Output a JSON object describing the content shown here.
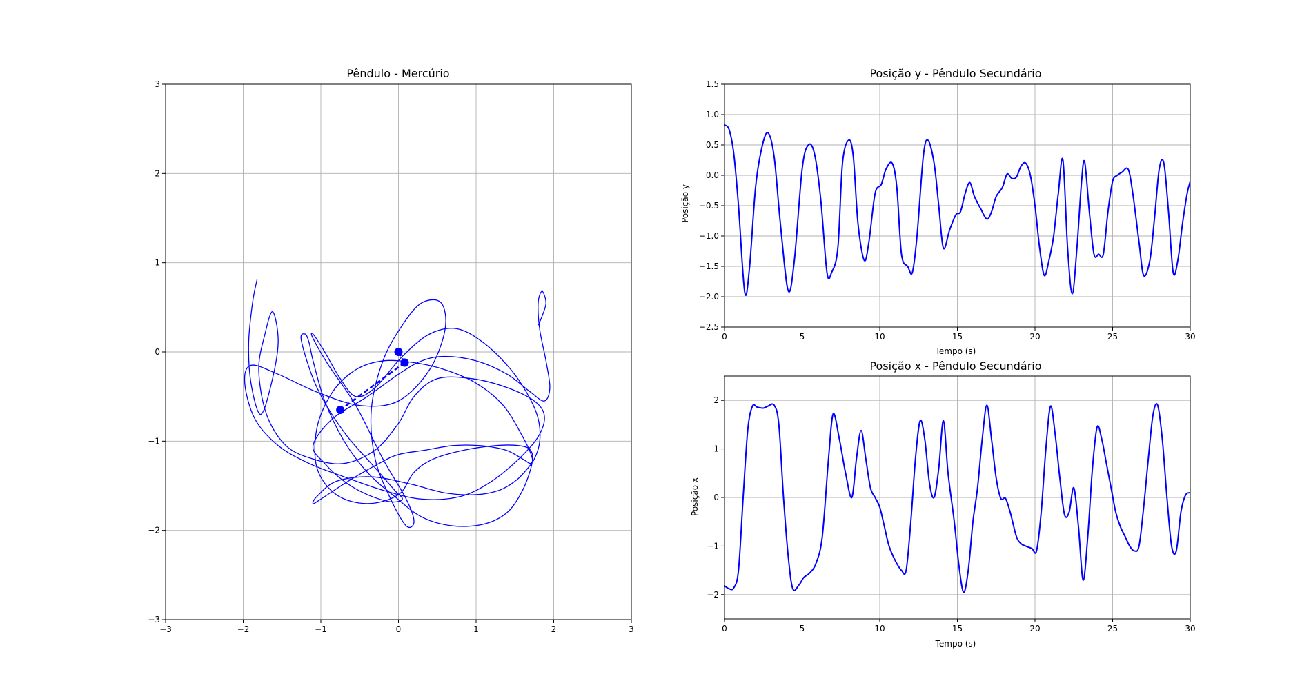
{
  "chart_data": [
    {
      "type": "line",
      "title": "Pêndulo - Mercúrio",
      "xlabel": "",
      "ylabel": "",
      "xlim": [
        -3,
        3
      ],
      "ylim": [
        -3,
        3
      ],
      "xticks": [
        -3,
        -2,
        -1,
        0,
        1,
        2,
        3
      ],
      "yticks": [
        -3,
        -2,
        -1,
        0,
        1,
        2,
        3
      ],
      "xtick_labels": [
        "−3",
        "−2",
        "−1",
        "0",
        "1",
        "2",
        "3"
      ],
      "ytick_labels": [
        "−3",
        "−2",
        "−1",
        "0",
        "1",
        "2",
        "3"
      ],
      "grid": true,
      "color": "#0000ff",
      "trajectory": {
        "x": [
          -1.82,
          -1.88,
          -1.93,
          -1.9,
          -1.78,
          -1.65,
          -1.55,
          -1.62,
          -1.72,
          -1.8,
          -1.7,
          -1.45,
          -1.1,
          -0.7,
          -0.3,
          0.0,
          0.2,
          0.5,
          0.95,
          1.4,
          1.75,
          1.88,
          1.8,
          1.55,
          1.2,
          0.8,
          0.3,
          -0.2,
          -0.7,
          -1.15,
          -1.55,
          -1.85,
          -1.98,
          -1.9,
          -1.55,
          -1.05,
          -0.5,
          0.0,
          0.4,
          0.6,
          0.55,
          0.3,
          0.05,
          -0.2,
          -0.35,
          -0.3,
          -0.1,
          0.1,
          0.2,
          0.1,
          -0.2,
          -0.55,
          -0.9,
          -1.1,
          -1.1,
          -0.95,
          -0.75,
          -0.55,
          -0.3,
          0.05,
          0.4,
          0.75,
          1.1,
          1.45,
          1.68,
          1.8,
          1.82,
          1.75,
          1.62,
          1.5,
          1.3,
          1.0,
          0.6,
          0.15,
          -0.35,
          -0.8,
          -1.05,
          -1.1,
          -1.0,
          -0.65,
          -0.25,
          0.0,
          0.35,
          0.7,
          1.05,
          1.38,
          1.6,
          1.7,
          1.72,
          1.6,
          1.35,
          1.0,
          0.6,
          0.2,
          -0.2,
          -0.55,
          -0.85,
          -1.05,
          -1.05,
          -0.8,
          -0.4,
          0.0,
          0.2,
          0.45,
          0.85,
          1.25,
          1.55,
          1.7,
          1.72,
          1.6,
          1.4,
          1.1,
          0.7,
          0.3,
          -0.05,
          -0.4,
          -0.7,
          -0.95,
          -1.1,
          -1.15,
          -1.2,
          -1.25,
          -1.05,
          -0.7,
          -0.3,
          -0.05,
          0.05,
          -0.1,
          -0.4,
          -0.7,
          -0.95,
          -1.1,
          -0.85,
          -0.4,
          0.0,
          0.3,
          0.6,
          1.0,
          1.4,
          1.7,
          1.88,
          1.95,
          1.9,
          1.82,
          1.8,
          1.85,
          1.9,
          1.85,
          1.8
        ],
        "y": [
          0.82,
          0.55,
          0.1,
          -0.35,
          -0.7,
          -0.4,
          0.1,
          0.45,
          0.2,
          -0.2,
          -0.7,
          -1.05,
          -1.2,
          -1.25,
          -1.1,
          -0.8,
          -0.5,
          -0.3,
          -0.3,
          -0.4,
          -0.55,
          -0.72,
          -0.95,
          -1.2,
          -1.45,
          -1.62,
          -1.65,
          -1.55,
          -1.4,
          -1.25,
          -1.05,
          -0.75,
          -0.35,
          -0.15,
          -0.25,
          -0.45,
          -0.6,
          -0.55,
          -0.2,
          0.25,
          0.55,
          0.55,
          0.3,
          -0.1,
          -0.65,
          -1.2,
          -1.65,
          -1.95,
          -1.9,
          -1.65,
          -1.2,
          -0.6,
          -0.15,
          0.15,
          0.2,
          0.0,
          -0.3,
          -0.5,
          -0.4,
          -0.05,
          0.2,
          0.26,
          0.1,
          -0.2,
          -0.5,
          -0.75,
          -1.0,
          -1.2,
          -1.35,
          -1.45,
          -1.55,
          -1.6,
          -1.58,
          -1.48,
          -1.4,
          -1.45,
          -1.62,
          -1.7,
          -1.65,
          -1.45,
          -1.25,
          -1.15,
          -1.1,
          -1.05,
          -1.05,
          -1.1,
          -1.2,
          -1.25,
          -1.18,
          -0.95,
          -0.6,
          -0.35,
          -0.2,
          -0.12,
          -0.1,
          -0.2,
          -0.45,
          -0.85,
          -1.3,
          -1.6,
          -1.7,
          -1.6,
          -1.35,
          -1.2,
          -1.1,
          -1.05,
          -1.05,
          -1.1,
          -1.25,
          -1.55,
          -1.8,
          -1.93,
          -1.95,
          -1.85,
          -1.62,
          -1.35,
          -1.0,
          -0.55,
          -0.1,
          0.1,
          0.2,
          0.12,
          -0.4,
          -0.9,
          -1.3,
          -1.55,
          -1.65,
          -1.68,
          -1.6,
          -1.45,
          -1.25,
          -1.05,
          -0.75,
          -0.5,
          -0.25,
          -0.1,
          -0.05,
          -0.1,
          -0.25,
          -0.45,
          -0.55,
          -0.4,
          -0.1,
          0.25,
          0.55,
          0.68,
          0.55,
          0.4,
          0.3
        ]
      },
      "pendulum": {
        "pivot": [
          0.0,
          0.0
        ],
        "mass1": [
          0.08,
          -0.12
        ],
        "mass2": [
          -0.75,
          -0.65
        ]
      }
    },
    {
      "type": "line",
      "title": "Posição y - Pêndulo Secundário",
      "xlabel": "Tempo (s)",
      "ylabel": "Posição y",
      "xlim": [
        0,
        30
      ],
      "ylim": [
        -2.5,
        1.5
      ],
      "xticks": [
        0,
        5,
        10,
        15,
        20,
        25,
        30
      ],
      "yticks": [
        -2.5,
        -2.0,
        -1.5,
        -1.0,
        -0.5,
        0.0,
        0.5,
        1.0,
        1.5
      ],
      "xtick_labels": [
        "0",
        "5",
        "10",
        "15",
        "20",
        "25",
        "30"
      ],
      "ytick_labels": [
        "−2.5",
        "−2.0",
        "−1.5",
        "−1.0",
        "−0.5",
        "0.0",
        "0.5",
        "1.0",
        "1.5"
      ],
      "grid": true,
      "color": "#0000ff",
      "x": [
        0.0,
        0.3,
        0.6,
        0.9,
        1.3,
        1.6,
        2.0,
        2.4,
        2.8,
        3.2,
        3.6,
        4.1,
        4.5,
        5.0,
        5.4,
        5.8,
        6.2,
        6.6,
        6.9,
        7.3,
        7.6,
        8.0,
        8.3,
        8.6,
        9.0,
        9.3,
        9.7,
        10.1,
        10.4,
        10.8,
        11.1,
        11.4,
        11.8,
        12.1,
        12.4,
        12.8,
        13.1,
        13.5,
        13.8,
        14.1,
        14.5,
        14.9,
        15.2,
        15.5,
        15.8,
        16.1,
        16.5,
        16.9,
        17.2,
        17.5,
        17.9,
        18.2,
        18.5,
        18.8,
        19.1,
        19.4,
        19.7,
        20.0,
        20.3,
        20.6,
        20.9,
        21.2,
        21.5,
        21.8,
        22.1,
        22.4,
        22.7,
        23.0,
        23.2,
        23.5,
        23.8,
        24.1,
        24.4,
        24.7,
        25.0,
        25.3,
        25.6,
        26.0,
        26.3,
        26.7,
        27.0,
        27.4,
        27.7,
        28.0,
        28.3,
        28.6,
        28.9,
        29.2,
        29.5,
        29.8,
        30.0
      ],
      "y": [
        0.83,
        0.75,
        0.35,
        -0.5,
        -1.92,
        -1.55,
        -0.2,
        0.45,
        0.7,
        0.3,
        -0.8,
        -1.9,
        -1.4,
        0.1,
        0.5,
        0.35,
        -0.4,
        -1.6,
        -1.6,
        -1.2,
        0.2,
        0.58,
        0.3,
        -0.8,
        -1.4,
        -1.1,
        -0.3,
        -0.15,
        0.1,
        0.2,
        -0.2,
        -1.3,
        -1.5,
        -1.6,
        -1.0,
        0.3,
        0.58,
        0.2,
        -0.5,
        -1.2,
        -0.9,
        -0.65,
        -0.6,
        -0.3,
        -0.12,
        -0.35,
        -0.55,
        -0.72,
        -0.6,
        -0.35,
        -0.2,
        0.02,
        -0.05,
        -0.03,
        0.15,
        0.2,
        0.0,
        -0.5,
        -1.2,
        -1.65,
        -1.4,
        -1.0,
        -0.3,
        0.25,
        -1.2,
        -1.95,
        -1.2,
        -0.1,
        0.22,
        -0.6,
        -1.3,
        -1.3,
        -1.3,
        -0.6,
        -0.1,
        0.0,
        0.05,
        0.1,
        -0.3,
        -1.1,
        -1.65,
        -1.4,
        -0.7,
        0.1,
        0.2,
        -0.6,
        -1.6,
        -1.4,
        -0.8,
        -0.3,
        -0.1
      ]
    },
    {
      "type": "line",
      "title": "Posição x - Pêndulo Secundário",
      "xlabel": "Tempo (s)",
      "ylabel": "Posição x",
      "xlim": [
        0,
        30
      ],
      "ylim": [
        -2.5,
        2.5
      ],
      "xticks": [
        0,
        5,
        10,
        15,
        20,
        25,
        30
      ],
      "yticks": [
        -2,
        -1,
        0,
        1,
        2
      ],
      "xtick_labels": [
        "0",
        "5",
        "10",
        "15",
        "20",
        "25",
        "30"
      ],
      "ytick_labels": [
        "−2",
        "−1",
        "0",
        "1",
        "2"
      ],
      "grid": true,
      "color": "#0000ff",
      "x": [
        0.0,
        0.3,
        0.6,
        0.9,
        1.2,
        1.5,
        1.8,
        2.1,
        2.5,
        2.8,
        3.2,
        3.5,
        3.8,
        4.1,
        4.4,
        4.8,
        5.1,
        5.5,
        5.9,
        6.3,
        6.7,
        7.0,
        7.4,
        7.8,
        8.2,
        8.5,
        8.8,
        9.1,
        9.4,
        9.7,
        10.0,
        10.3,
        10.6,
        11.0,
        11.4,
        11.7,
        12.0,
        12.3,
        12.6,
        12.9,
        13.2,
        13.5,
        13.8,
        14.1,
        14.4,
        14.8,
        15.1,
        15.4,
        15.7,
        16.0,
        16.3,
        16.6,
        16.9,
        17.2,
        17.5,
        17.8,
        18.1,
        18.4,
        18.8,
        19.1,
        19.4,
        19.8,
        20.1,
        20.4,
        20.7,
        21.0,
        21.3,
        21.6,
        21.9,
        22.2,
        22.5,
        22.8,
        23.1,
        23.4,
        23.7,
        24.0,
        24.3,
        24.6,
        24.9,
        25.2,
        25.5,
        25.8,
        26.1,
        26.4,
        26.7,
        27.0,
        27.3,
        27.6,
        27.9,
        28.2,
        28.5,
        28.8,
        29.1,
        29.4,
        29.7,
        30.0
      ],
      "y": [
        -1.82,
        -1.88,
        -1.86,
        -1.5,
        0.0,
        1.4,
        1.88,
        1.86,
        1.84,
        1.88,
        1.9,
        1.5,
        0.0,
        -1.2,
        -1.88,
        -1.8,
        -1.65,
        -1.55,
        -1.35,
        -0.8,
        0.8,
        1.72,
        1.2,
        0.5,
        0.0,
        0.8,
        1.38,
        0.8,
        0.2,
        0.0,
        -0.2,
        -0.6,
        -1.0,
        -1.3,
        -1.5,
        -1.5,
        -0.5,
        0.8,
        1.58,
        1.2,
        0.3,
        0.0,
        0.6,
        1.58,
        0.5,
        -0.5,
        -1.4,
        -1.95,
        -1.5,
        -0.5,
        0.2,
        1.2,
        1.9,
        1.2,
        0.4,
        -0.02,
        -0.02,
        -0.3,
        -0.8,
        -0.95,
        -1.0,
        -1.05,
        -1.1,
        -0.3,
        1.0,
        1.88,
        1.3,
        0.4,
        -0.35,
        -0.3,
        0.2,
        -0.6,
        -1.7,
        -0.8,
        0.6,
        1.45,
        1.2,
        0.7,
        0.2,
        -0.3,
        -0.6,
        -0.8,
        -1.0,
        -1.1,
        -1.0,
        -0.2,
        0.8,
        1.7,
        1.9,
        1.2,
        0.0,
        -1.0,
        -1.1,
        -0.3,
        0.05,
        0.1
      ]
    }
  ]
}
